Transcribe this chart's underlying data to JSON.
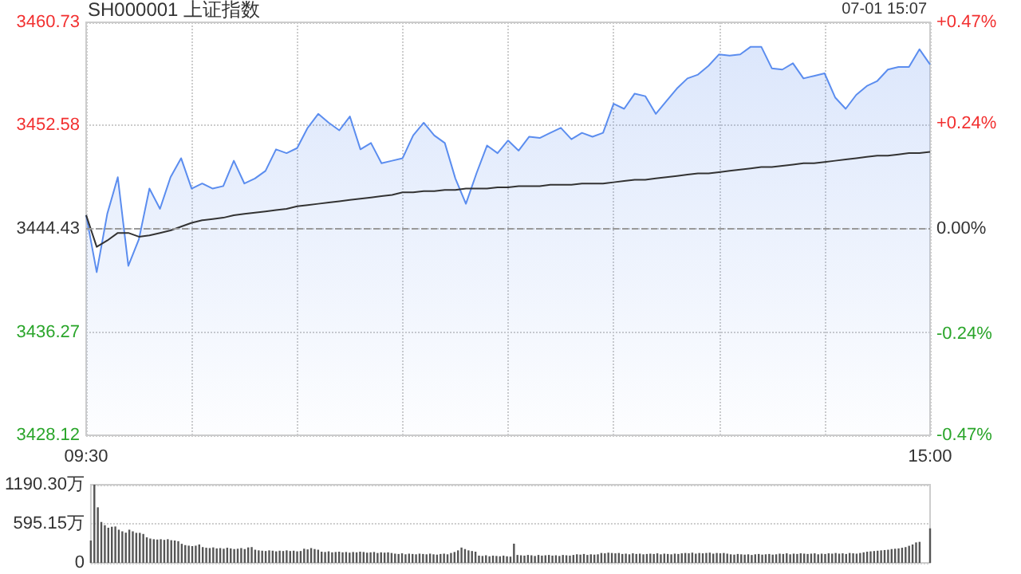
{
  "chart_data": [
    {
      "type": "area",
      "title": "SH000001 上证指数",
      "annotations": [
        "07-01 15:07"
      ],
      "categories": [
        "09:30",
        null,
        null,
        null,
        null,
        null,
        null,
        null,
        null,
        null,
        null,
        null,
        null,
        null,
        null,
        null,
        null,
        null,
        null,
        null,
        null,
        null,
        null,
        null,
        null,
        null,
        null,
        null,
        null,
        null,
        null,
        null,
        null,
        null,
        null,
        null,
        null,
        null,
        null,
        null,
        null,
        null,
        null,
        null,
        null,
        null,
        null,
        null,
        null,
        null,
        null,
        null,
        null,
        null,
        null,
        null,
        null,
        null,
        null,
        null,
        null,
        null,
        null,
        null,
        null,
        null,
        null,
        null,
        null,
        null,
        null,
        null,
        null,
        null,
        null,
        null,
        null,
        null,
        null,
        null,
        "15:00"
      ],
      "series": [
        {
          "color": "#5b8def",
          "values": [
            3445.5,
            3441.0,
            3445.6,
            3448.5,
            3441.5,
            3443.6,
            3447.6,
            3446.0,
            3448.5,
            3450.0,
            3447.6,
            3448.0,
            3447.6,
            3447.8,
            3449.8,
            3448.0,
            3448.4,
            3449.0,
            3450.7,
            3450.4,
            3450.8,
            3452.4,
            3453.5,
            3452.8,
            3452.2,
            3453.3,
            3450.7,
            3451.2,
            3449.6,
            3449.8,
            3450.0,
            3451.8,
            3452.8,
            3451.8,
            3451.2,
            3448.4,
            3446.4,
            3448.8,
            3451.0,
            3450.4,
            3451.4,
            3450.6,
            3451.7,
            3451.6,
            3452.0,
            3452.4,
            3451.5,
            3452.0,
            3451.7,
            3452.0,
            3454.3,
            3453.9,
            3455.1,
            3454.9,
            3453.5,
            3454.5,
            3455.5,
            3456.3,
            3456.6,
            3457.3,
            3458.2,
            3458.1,
            3458.2,
            3458.8,
            3458.8,
            3457.1,
            3457.0,
            3457.5,
            3456.3,
            3456.5,
            3456.7,
            3454.8,
            3453.9,
            3455.0,
            3455.7,
            3456.1,
            3457.0,
            3457.2,
            3457.2,
            3458.6,
            3457.4
          ]
        },
        {
          "type": "line",
          "color": "#333333",
          "values": [
            3445.5,
            3443.0,
            3443.5,
            3444.1,
            3444.1,
            3443.8,
            3443.9,
            3444.1,
            3444.3,
            3444.6,
            3444.9,
            3445.1,
            3445.2,
            3445.3,
            3445.5,
            3445.6,
            3445.7,
            3445.8,
            3445.9,
            3446.0,
            3446.2,
            3446.3,
            3446.4,
            3446.5,
            3446.6,
            3446.7,
            3446.8,
            3446.9,
            3447.0,
            3447.1,
            3447.3,
            3447.3,
            3447.4,
            3447.4,
            3447.5,
            3447.5,
            3447.6,
            3447.6,
            3447.6,
            3447.7,
            3447.7,
            3447.8,
            3447.8,
            3447.8,
            3447.9,
            3447.9,
            3447.9,
            3448.0,
            3448.0,
            3448.0,
            3448.1,
            3448.2,
            3448.3,
            3448.3,
            3448.4,
            3448.5,
            3448.6,
            3448.7,
            3448.8,
            3448.8,
            3448.9,
            3449.0,
            3449.1,
            3449.2,
            3449.3,
            3449.3,
            3449.4,
            3449.5,
            3449.6,
            3449.6,
            3449.7,
            3449.8,
            3449.9,
            3450.0,
            3450.1,
            3450.2,
            3450.2,
            3450.3,
            3450.4,
            3450.4,
            3450.5
          ]
        }
      ],
      "ylim": [
        3428.12,
        3460.73
      ],
      "yticks": [
        3428.12,
        3436.27,
        3444.43,
        3452.58,
        3460.73
      ],
      "y2lim": [
        -0.47,
        0.47
      ],
      "y2ticks": [
        {
          "value": -0.47,
          "label": "-0.47%"
        },
        {
          "value": -0.24,
          "label": "-0.24%"
        },
        {
          "value": 0,
          "label": "0.00%"
        },
        {
          "value": 0.24,
          "label": "+0.24%"
        },
        {
          "value": 0.47,
          "label": "+0.47%"
        }
      ],
      "ref_lines": [
        {
          "axis": "y",
          "value": 3444.43,
          "line_style": "dashed"
        }
      ],
      "grid": true,
      "marker": "none"
    },
    {
      "type": "bar",
      "color": "#555555",
      "categories": [
        null,
        null,
        null,
        null,
        null,
        null,
        null,
        null,
        null,
        null,
        null,
        null,
        null,
        null,
        null,
        null,
        null,
        null,
        null,
        null,
        null,
        null,
        null,
        null,
        null,
        null,
        null,
        null,
        null,
        null,
        null,
        null,
        null,
        null,
        null,
        null,
        null,
        null,
        null,
        null,
        null,
        null,
        null,
        null,
        null,
        null,
        null,
        null,
        null,
        null,
        null,
        null,
        null,
        null,
        null,
        null,
        null,
        null,
        null,
        null,
        null,
        null,
        null,
        null,
        null,
        null,
        null,
        null,
        null,
        null,
        null,
        null,
        null,
        null,
        null,
        null,
        null,
        null,
        null,
        null,
        null,
        null,
        null,
        null,
        null,
        null,
        null,
        null,
        null,
        null,
        null,
        null,
        null,
        null,
        null,
        null,
        null,
        null,
        null,
        null,
        null,
        null,
        null,
        null,
        null,
        null,
        null,
        null,
        null,
        null,
        null,
        null,
        null,
        null,
        null,
        null,
        null,
        null,
        null,
        null,
        null,
        null,
        null,
        null,
        null,
        null,
        null,
        null,
        null,
        null,
        null,
        null,
        null,
        null,
        null,
        null,
        null,
        null,
        null,
        null,
        null,
        null,
        null,
        null,
        null,
        null,
        null,
        null,
        null,
        null,
        null,
        null,
        null,
        null,
        null,
        null,
        null,
        null,
        null,
        null,
        null,
        null,
        null,
        null,
        null,
        null,
        null,
        null,
        null,
        null,
        null,
        null,
        null,
        null,
        null,
        null,
        null,
        null,
        null,
        null,
        null,
        null,
        null,
        null,
        null,
        null,
        null,
        null,
        null,
        null,
        null,
        null,
        null,
        null,
        null,
        null,
        null,
        null,
        null,
        null,
        null,
        null,
        null,
        null,
        null,
        null,
        null,
        null,
        null,
        null,
        null,
        null,
        null,
        null,
        null,
        null,
        null,
        null,
        null,
        null,
        null,
        null,
        null,
        null,
        null,
        null,
        null,
        null,
        null,
        null,
        null,
        null,
        null,
        null,
        null,
        null,
        null,
        null,
        null,
        null,
        null
      ],
      "values": [
        340,
        1190.3,
        846,
        622,
        573,
        535,
        550,
        554,
        505,
        480,
        460,
        505,
        480,
        457,
        457,
        440,
        389,
        370,
        360,
        355,
        360,
        350,
        360,
        345,
        340,
        330,
        290,
        270,
        262,
        255,
        262,
        280,
        240,
        230,
        225,
        235,
        220,
        225,
        215,
        230,
        220,
        210,
        215,
        225,
        210,
        235,
        240,
        200,
        190,
        185,
        180,
        190,
        185,
        175,
        185,
        180,
        190,
        180,
        185,
        175,
        180,
        215,
        205,
        225,
        210,
        200,
        170,
        165,
        175,
        160,
        165,
        170,
        160,
        165,
        155,
        165,
        160,
        170,
        165,
        155,
        160,
        165,
        150,
        160,
        155,
        160,
        150,
        140,
        135,
        145,
        130,
        140,
        135,
        130,
        140,
        135,
        130,
        140,
        130,
        125,
        135,
        140,
        130,
        150,
        165,
        190,
        233,
        210,
        190,
        180,
        170,
        110,
        105,
        115,
        100,
        110,
        105,
        100,
        110,
        100,
        95,
        292,
        120,
        115,
        110,
        120,
        115,
        105,
        120,
        110,
        115,
        120,
        110,
        115,
        105,
        120,
        115,
        110,
        120,
        130,
        125,
        135,
        120,
        130,
        125,
        130,
        150,
        145,
        155,
        150,
        145,
        150,
        135,
        140,
        130,
        145,
        135,
        140,
        130,
        135,
        140,
        135,
        145,
        130,
        140,
        135,
        130,
        140,
        135,
        145,
        150,
        145,
        155,
        140,
        150,
        145,
        150,
        155,
        140,
        150,
        145,
        150,
        140,
        130,
        125,
        135,
        130,
        125,
        130,
        120,
        130,
        135,
        125,
        130,
        135,
        125,
        130,
        140,
        135,
        145,
        130,
        140,
        135,
        145,
        140,
        135,
        140,
        145,
        130,
        140,
        135,
        145,
        140,
        150,
        140,
        145,
        135,
        150,
        145,
        140,
        150,
        160,
        170,
        175,
        180,
        185,
        190,
        195,
        200,
        210,
        215,
        220,
        230,
        240,
        260,
        280,
        311,
        320,
        null,
        null,
        525
      ],
      "ylim": [
        0,
        1190.3
      ],
      "yticks": [
        {
          "value": 0,
          "label": "0"
        },
        {
          "value": 595.15,
          "label": "595.15万"
        },
        {
          "value": 1190.3,
          "label": "1190.30万"
        }
      ],
      "grid": "y",
      "tick_labels": "y"
    }
  ]
}
